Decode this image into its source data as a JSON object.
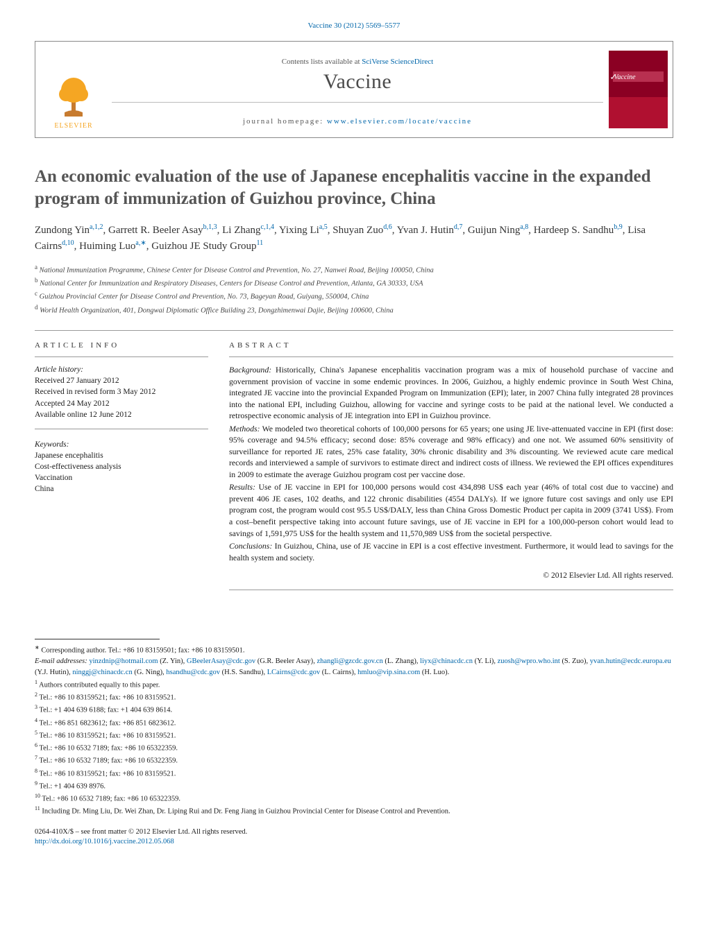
{
  "topCitation": "Vaccine 30 (2012) 5569–5577",
  "headerBox": {
    "contentsPrefix": "Contents lists available at ",
    "contentsLink": "SciVerse ScienceDirect",
    "journalName": "Vaccine",
    "homepagePrefix": "journal homepage: ",
    "homepageLink": "www.elsevier.com/locate/vaccine",
    "publisherLogoLabel": "ELSEVIER",
    "coverTitle": "Vaccine"
  },
  "article": {
    "title": "An economic evaluation of the use of Japanese encephalitis vaccine in the expanded program of immunization of Guizhou province, China",
    "authors": [
      {
        "name": "Zundong Yin",
        "sup": "a,1,2"
      },
      {
        "name": "Garrett R. Beeler Asay",
        "sup": "b,1,3"
      },
      {
        "name": "Li Zhang",
        "sup": "c,1,4"
      },
      {
        "name": "Yixing Li",
        "sup": "a,5"
      },
      {
        "name": "Shuyan Zuo",
        "sup": "d,6"
      },
      {
        "name": "Yvan J. Hutin",
        "sup": "d,7"
      },
      {
        "name": "Guijun Ning",
        "sup": "a,8"
      },
      {
        "name": "Hardeep S. Sandhu",
        "sup": "b,9"
      },
      {
        "name": "Lisa Cairns",
        "sup": "d,10"
      },
      {
        "name": "Huiming Luo",
        "sup": "a,∗"
      },
      {
        "name": "Guizhou JE Study Group",
        "sup": "11"
      }
    ],
    "affiliations": [
      {
        "sup": "a",
        "text": "National Immunization Programme, Chinese Center for Disease Control and Prevention, No. 27, Nanwei Road, Beijing 100050, China"
      },
      {
        "sup": "b",
        "text": "National Center for Immunization and Respiratory Diseases, Centers for Disease Control and Prevention, Atlanta, GA 30333, USA"
      },
      {
        "sup": "c",
        "text": "Guizhou Provincial Center for Disease Control and Prevention, No. 73, Bageyan Road, Guiyang, 550004, China"
      },
      {
        "sup": "d",
        "text": "World Health Organization, 401, Dongwai Diplomatic Office Building 23, Dongzhimenwai Dajie, Beijing 100600, China"
      }
    ]
  },
  "articleInfo": {
    "sectionTitle": "article info",
    "historyLabel": "Article history:",
    "history": [
      "Received 27 January 2012",
      "Received in revised form 3 May 2012",
      "Accepted 24 May 2012",
      "Available online 12 June 2012"
    ],
    "keywordsLabel": "Keywords:",
    "keywords": [
      "Japanese encephalitis",
      "Cost-effectiveness analysis",
      "Vaccination",
      "China"
    ]
  },
  "abstract": {
    "sectionTitle": "abstract",
    "paragraphs": [
      {
        "label": "Background:",
        "text": "Historically, China's Japanese encephalitis vaccination program was a mix of household purchase of vaccine and government provision of vaccine in some endemic provinces. In 2006, Guizhou, a highly endemic province in South West China, integrated JE vaccine into the provincial Expanded Program on Immunization (EPI); later, in 2007 China fully integrated 28 provinces into the national EPI, including Guizhou, allowing for vaccine and syringe costs to be paid at the national level. We conducted a retrospective economic analysis of JE integration into EPI in Guizhou province."
      },
      {
        "label": "Methods:",
        "text": "We modeled two theoretical cohorts of 100,000 persons for 65 years; one using JE live-attenuated vaccine in EPI (first dose: 95% coverage and 94.5% efficacy; second dose: 85% coverage and 98% efficacy) and one not. We assumed 60% sensitivity of surveillance for reported JE rates, 25% case fatality, 30% chronic disability and 3% discounting. We reviewed acute care medical records and interviewed a sample of survivors to estimate direct and indirect costs of illness. We reviewed the EPI offices expenditures in 2009 to estimate the average Guizhou program cost per vaccine dose."
      },
      {
        "label": "Results:",
        "text": "Use of JE vaccine in EPI for 100,000 persons would cost 434,898 US$ each year (46% of total cost due to vaccine) and prevent 406 JE cases, 102 deaths, and 122 chronic disabilities (4554 DALYs). If we ignore future cost savings and only use EPI program cost, the program would cost 95.5 US$/DALY, less than China Gross Domestic Product per capita in 2009 (3741 US$). From a cost–benefit perspective taking into account future savings, use of JE vaccine in EPI for a 100,000-person cohort would lead to savings of 1,591,975 US$ for the health system and 11,570,989 US$ from the societal perspective."
      },
      {
        "label": "Conclusions:",
        "text": "In Guizhou, China, use of JE vaccine in EPI is a cost effective investment. Furthermore, it would lead to savings for the health system and society."
      }
    ],
    "copyright": "© 2012 Elsevier Ltd. All rights reserved."
  },
  "footnotes": {
    "corresponding": {
      "sup": "∗",
      "text": "Corresponding author. Tel.: +86 10 83159501; fax: +86 10 83159501."
    },
    "emailsLabel": "E-mail addresses: ",
    "emails": [
      {
        "addr": "yinzdnip@hotmail.com",
        "who": "(Z. Yin)"
      },
      {
        "addr": "GBeelerAsay@cdc.gov",
        "who": "(G.R. Beeler Asay)"
      },
      {
        "addr": "zhangli@gzcdc.gov.cn",
        "who": "(L. Zhang)"
      },
      {
        "addr": "liyx@chinacdc.cn",
        "who": "(Y. Li)"
      },
      {
        "addr": "zuosh@wpro.who.int",
        "who": "(S. Zuo)"
      },
      {
        "addr": "yvan.hutin@ecdc.europa.eu",
        "who": "(Y.J. Hutin)"
      },
      {
        "addr": "ninggj@chinacdc.cn",
        "who": "(G. Ning)"
      },
      {
        "addr": "hsandhu@cdc.gov",
        "who": "(H.S. Sandhu)"
      },
      {
        "addr": "LCairns@cdc.gov",
        "who": "(L. Cairns)"
      },
      {
        "addr": "hmluo@vip.sina.com",
        "who": "(H. Luo)"
      }
    ],
    "numbered": [
      {
        "sup": "1",
        "text": "Authors contributed equally to this paper."
      },
      {
        "sup": "2",
        "text": "Tel.: +86 10 83159521; fax: +86 10 83159521."
      },
      {
        "sup": "3",
        "text": "Tel.: +1 404 639 6188; fax: +1 404 639 8614."
      },
      {
        "sup": "4",
        "text": "Tel.: +86 851 6823612; fax: +86 851 6823612."
      },
      {
        "sup": "5",
        "text": "Tel.: +86 10 83159521; fax: +86 10 83159521."
      },
      {
        "sup": "6",
        "text": "Tel.: +86 10 6532 7189; fax: +86 10 65322359."
      },
      {
        "sup": "7",
        "text": "Tel.: +86 10 6532 7189; fax: +86 10 65322359."
      },
      {
        "sup": "8",
        "text": "Tel.: +86 10 83159521; fax: +86 10 83159521."
      },
      {
        "sup": "9",
        "text": "Tel.: +1 404 639 8976."
      },
      {
        "sup": "10",
        "text": "Tel.: +86 10 6532 7189; fax: +86 10 65322359."
      },
      {
        "sup": "11",
        "text": "Including Dr. Ming Liu, Dr. Wei Zhan, Dr. Liping Rui and Dr. Feng Jiang in Guizhou Provincial Center for Disease Control and Prevention."
      }
    ]
  },
  "bottom": {
    "issn": "0264-410X/$ – see front matter © 2012 Elsevier Ltd. All rights reserved.",
    "doi": "http://dx.doi.org/10.1016/j.vaccine.2012.05.068"
  },
  "colors": {
    "link": "#0066aa",
    "rule": "#999999",
    "elsevierOrange": "#f5a623",
    "coverRed": "#8b0023",
    "text": "#1a1a1a"
  }
}
